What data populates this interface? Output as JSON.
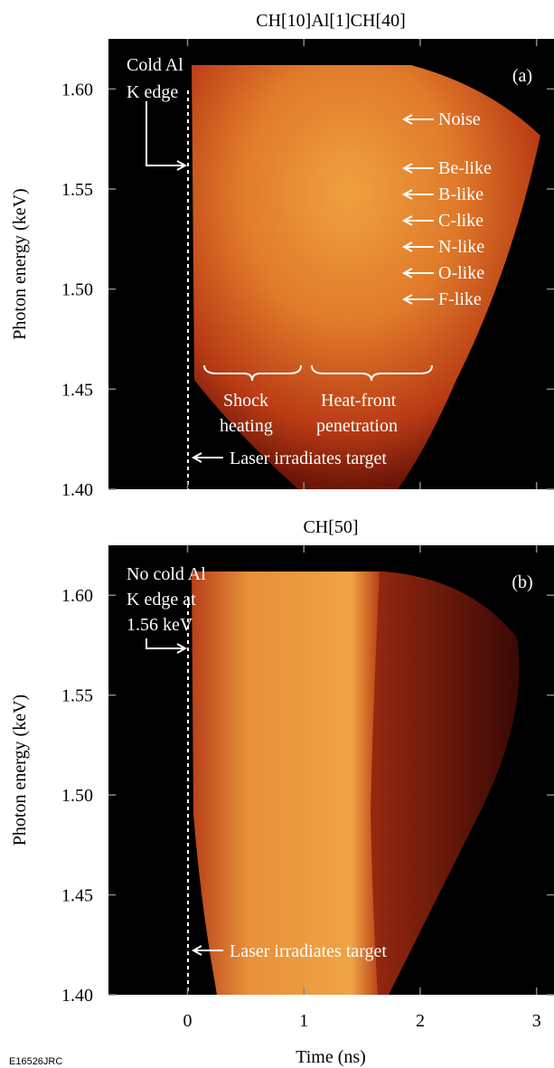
{
  "figure_id": "E16526JRC",
  "chart_data": [
    {
      "type": "image",
      "title": "CH[10]Al[1]CH[40]",
      "panel_label": "(a)",
      "y_label": "Photon energy (keV)",
      "xlim": [
        -0.68,
        3.15
      ],
      "ylim": [
        1.4,
        1.625
      ],
      "xticks": [
        0,
        1,
        2,
        3
      ],
      "xtick_labels": false,
      "yticks": [
        {
          "value": 1.4,
          "label": "1.40"
        },
        1.45,
        {
          "value": 1.5,
          "label": "1.50"
        },
        1.55,
        {
          "value": 1.6,
          "label": "1.60"
        }
      ],
      "annotations": [
        "Cold Al",
        "K edge",
        "Noise",
        "Be-like",
        "B-like",
        "C-like",
        "N-like",
        "O-like",
        "F-like",
        "Shock",
        "heating",
        "Heat-front",
        "penetration",
        "Laser irradiates target"
      ]
    },
    {
      "type": "image",
      "title": "CH[50]",
      "panel_label": "(b)",
      "y_label": "Photon energy (keV)",
      "x_label": "Time (ns)",
      "xlim": [
        -0.68,
        3.15
      ],
      "ylim": [
        1.4,
        1.625
      ],
      "xticks": [
        0,
        1,
        2,
        3
      ],
      "xtick_labels": true,
      "yticks": [
        {
          "value": 1.4,
          "label": "1.40"
        },
        1.45,
        {
          "value": 1.5,
          "label": "1.50"
        },
        1.55,
        {
          "value": 1.6,
          "label": "1.60"
        }
      ],
      "annotations": [
        "No cold Al",
        "K edge at",
        "1.56 keV",
        "Laser irradiates target"
      ]
    }
  ]
}
